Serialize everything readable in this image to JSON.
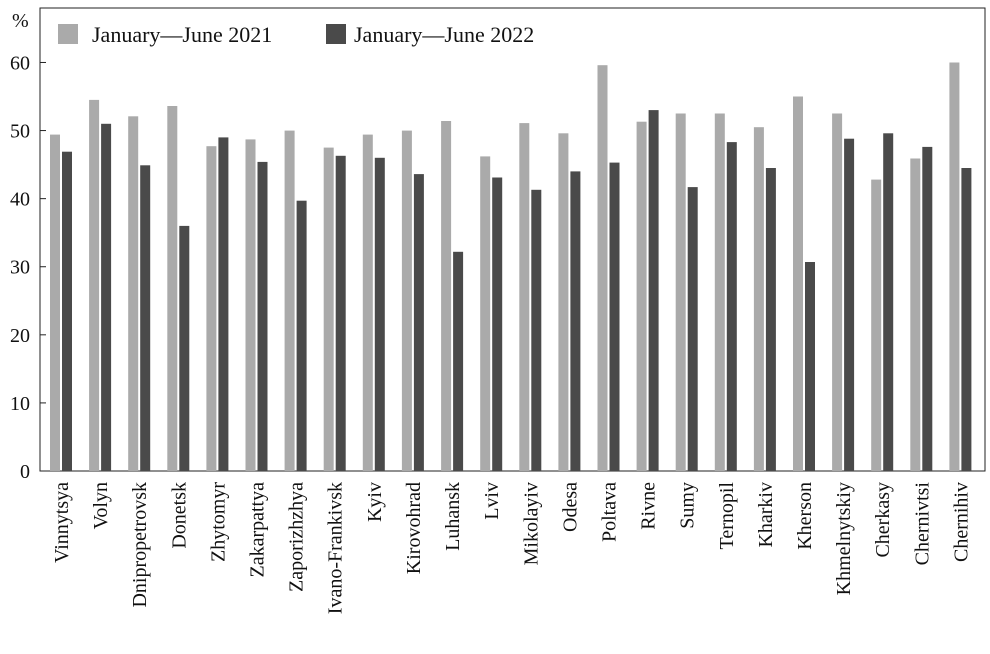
{
  "chart_data": {
    "type": "bar",
    "y_unit": "%",
    "ylim": [
      0,
      68
    ],
    "yticks": [
      0,
      10,
      20,
      30,
      40,
      50,
      60
    ],
    "grid": false,
    "legend_position": "top-left",
    "categories": [
      "Vinnytsya",
      "Volyn",
      "Dnipropetrovsk",
      "Donetsk",
      "Zhytomyr",
      "Zakarpattya",
      "Zaporizhzhya",
      "Ivano-Frankivsk",
      "Kyiv",
      "Kirovohrad",
      "Luhansk",
      "Lviv",
      "Mikolayiv",
      "Odesa",
      "Poltava",
      "Rivne",
      "Sumy",
      "Ternopil",
      "Kharkiv",
      "Kherson",
      "Khmelnytskiy",
      "Cherkasy",
      "Chernivtsi",
      "Chernihiv"
    ],
    "series": [
      {
        "name": "January—June 2021",
        "color": "#aaaaaa",
        "values": [
          49.4,
          54.5,
          52.1,
          53.6,
          47.7,
          48.7,
          50.0,
          47.5,
          49.4,
          50.0,
          51.4,
          46.2,
          51.1,
          49.6,
          59.6,
          51.3,
          52.5,
          52.5,
          50.5,
          55.0,
          52.5,
          42.8,
          45.9,
          60.0
        ]
      },
      {
        "name": "January—June 2022",
        "color": "#4a4a4a",
        "values": [
          46.9,
          51.0,
          44.9,
          36.0,
          49.0,
          45.4,
          39.7,
          46.3,
          46.0,
          43.6,
          32.2,
          43.1,
          41.3,
          44.0,
          45.3,
          53.0,
          41.7,
          48.3,
          44.5,
          30.7,
          48.8,
          49.6,
          47.6,
          44.5
        ]
      }
    ]
  }
}
